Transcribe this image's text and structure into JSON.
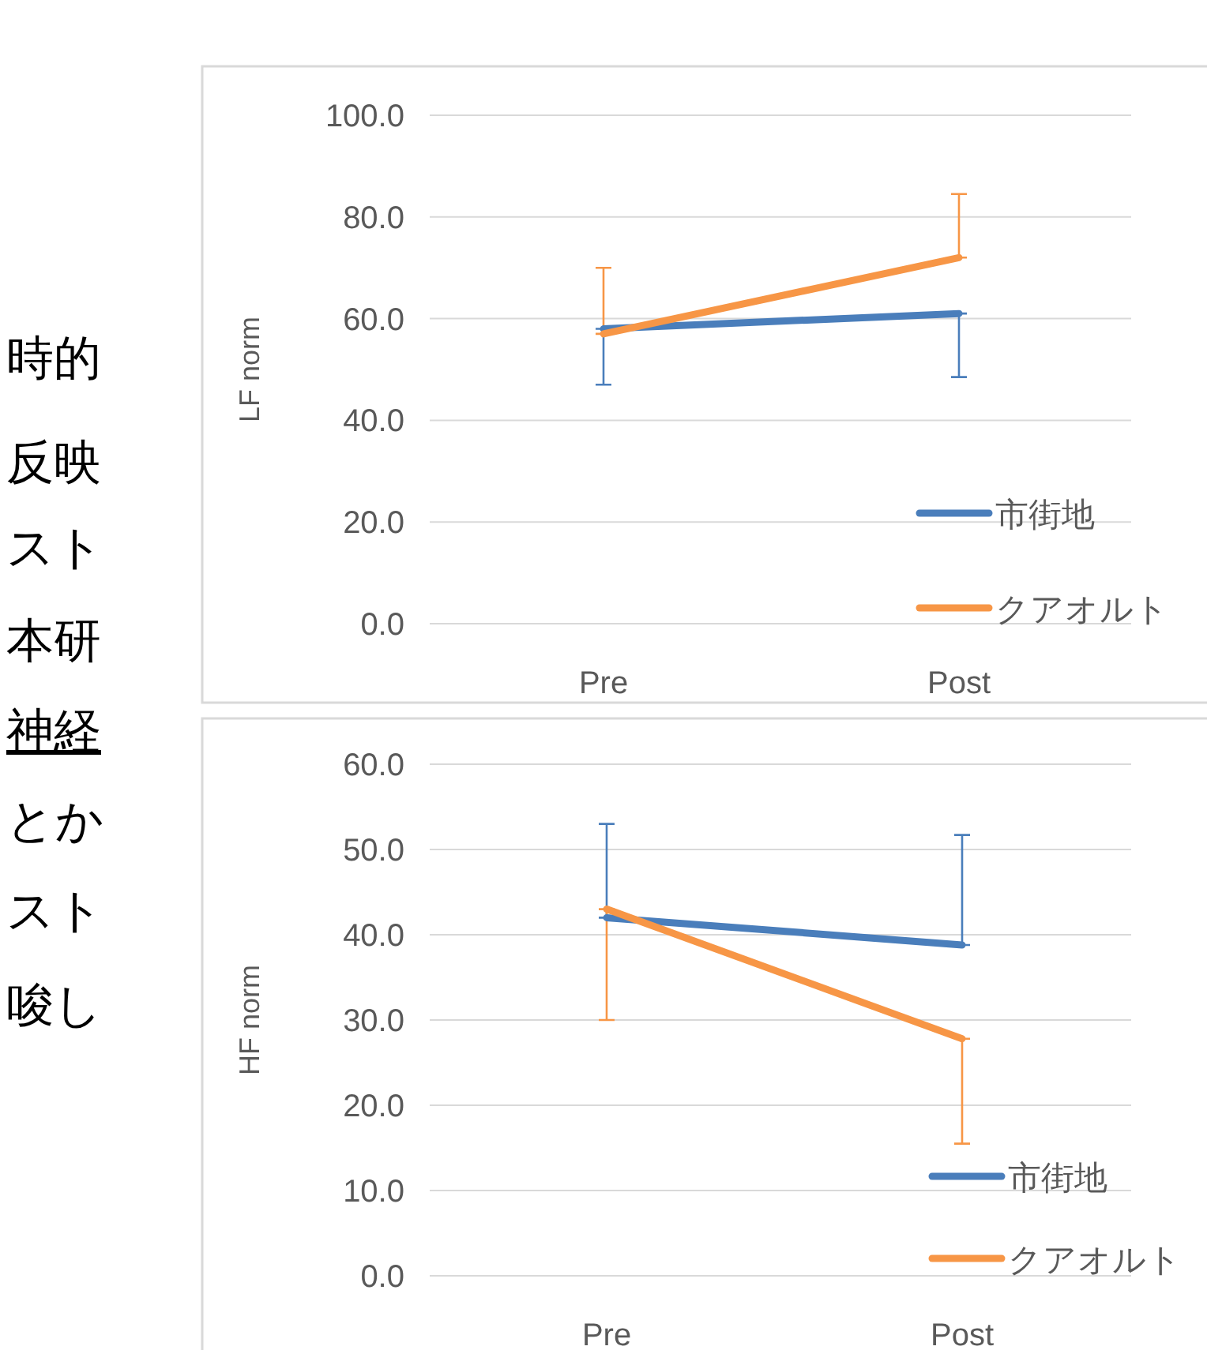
{
  "chart_data": [
    {
      "type": "other",
      "annotations": [
        "時的",
        "反映",
        "スト",
        "本研",
        "神経",
        "とか",
        "スト",
        "唆し"
      ]
    },
    {
      "type": "line",
      "ylabel": "LF norm",
      "categories": [
        "Pre",
        "Post"
      ],
      "ylim": [
        0,
        100
      ],
      "yticks": [
        {
          "value": 0,
          "label": "0.0"
        },
        {
          "value": 20,
          "label": "20.0"
        },
        {
          "value": 40,
          "label": "40.0"
        },
        {
          "value": 60,
          "label": "60.0"
        },
        {
          "value": 80,
          "label": "80.0"
        },
        {
          "value": 100,
          "label": "100.0"
        }
      ],
      "grid": "y",
      "legend": "bottom right",
      "series": [
        {
          "name": "市街地",
          "color": "#4a7ebb",
          "values": [
            58,
            61
          ],
          "errors": [
            [
              47,
              58
            ],
            [
              48.5,
              61
            ]
          ]
        },
        {
          "name": "クアオルト",
          "color": "#f79646",
          "values": [
            57,
            72
          ],
          "errors": [
            [
              57,
              70
            ],
            [
              72,
              84.5
            ]
          ]
        }
      ]
    },
    {
      "type": "line",
      "ylabel": "HF norm",
      "categories": [
        "Pre",
        "Post"
      ],
      "ylim": [
        0,
        60
      ],
      "yticks": [
        {
          "value": 0,
          "label": "0.0"
        },
        {
          "value": 10,
          "label": "10.0"
        },
        {
          "value": 20,
          "label": "20.0"
        },
        {
          "value": 30,
          "label": "30.0"
        },
        {
          "value": 40,
          "label": "40.0"
        },
        {
          "value": 50,
          "label": "50.0"
        },
        {
          "value": 60,
          "label": "60.0"
        }
      ],
      "grid": "y",
      "legend": "bottom right",
      "series": [
        {
          "name": "市街地",
          "color": "#4a7ebb",
          "values": [
            42,
            38.8
          ],
          "errors": [
            [
              42,
              53
            ],
            [
              38.8,
              51.7
            ]
          ]
        },
        {
          "name": "クアオルト",
          "color": "#f79646",
          "values": [
            43,
            27.8
          ],
          "errors": [
            [
              30,
              43
            ],
            [
              15.5,
              27.8
            ]
          ]
        }
      ]
    }
  ]
}
